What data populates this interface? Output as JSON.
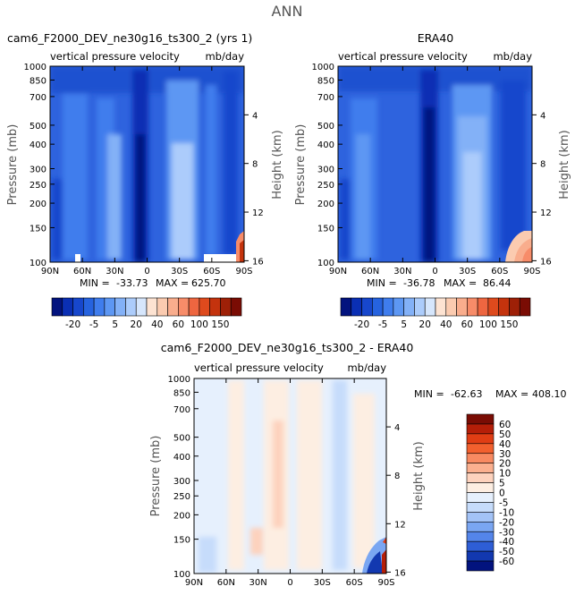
{
  "page_title": "ANN",
  "chart_data": [
    {
      "type": "heatmap",
      "title": "cam6_F2000_DEV_ne30g16_ts300_2 (yrs 1)",
      "subtitle_left": "vertical pressure velocity",
      "subtitle_right": "mb/day",
      "ylabel": "Pressure (mb)",
      "y2label": "Height (km)",
      "x_ticks": [
        "90N",
        "60N",
        "30N",
        "0",
        "30S",
        "60S",
        "90S"
      ],
      "y_ticks": [
        "100",
        "150",
        "200",
        "250",
        "300",
        "400",
        "500",
        "700",
        "850",
        "1000"
      ],
      "y_tick_values": [
        100,
        150,
        200,
        250,
        300,
        400,
        500,
        700,
        850,
        1000
      ],
      "y2_ticks": [
        "16",
        "12",
        "8",
        "4"
      ],
      "y2_tick_values": [
        16,
        12,
        8,
        4
      ],
      "ylim": [
        1000,
        100
      ],
      "y_scale": "log",
      "stats": {
        "min_label": "MIN =",
        "min": "-33.73",
        "max_label": "MAX =",
        "max": "625.70"
      }
    },
    {
      "type": "heatmap",
      "title": "ERA40",
      "subtitle_left": "vertical pressure velocity",
      "subtitle_right": "mb/day",
      "ylabel": "Pressure (mb)",
      "y2label": "Height (km)",
      "x_ticks": [
        "90N",
        "60N",
        "30N",
        "0",
        "30S",
        "60S",
        "90S"
      ],
      "y_ticks": [
        "100",
        "150",
        "200",
        "250",
        "300",
        "400",
        "500",
        "700",
        "850",
        "1000"
      ],
      "y_tick_values": [
        100,
        150,
        200,
        250,
        300,
        400,
        500,
        700,
        850,
        1000
      ],
      "y2_ticks": [
        "16",
        "12",
        "8",
        "4"
      ],
      "y2_tick_values": [
        16,
        12,
        8,
        4
      ],
      "ylim": [
        1000,
        100
      ],
      "y_scale": "log",
      "stats": {
        "min_label": "MIN =",
        "min": "-36.78",
        "max_label": "MAX =",
        "max": "86.44"
      }
    },
    {
      "type": "heatmap",
      "title": "cam6_F2000_DEV_ne30g16_ts300_2 - ERA40",
      "subtitle_left": "vertical pressure velocity",
      "subtitle_right": "mb/day",
      "ylabel": "Pressure (mb)",
      "y2label": "Height (km)",
      "x_ticks": [
        "90N",
        "60N",
        "30N",
        "0",
        "30S",
        "60S",
        "90S"
      ],
      "y_ticks": [
        "100",
        "150",
        "200",
        "250",
        "300",
        "400",
        "500",
        "700",
        "850",
        "1000"
      ],
      "y_tick_values": [
        100,
        150,
        200,
        250,
        300,
        400,
        500,
        700,
        850,
        1000
      ],
      "y2_ticks": [
        "16",
        "12",
        "8",
        "4"
      ],
      "y2_tick_values": [
        16,
        12,
        8,
        4
      ],
      "ylim": [
        1000,
        100
      ],
      "y_scale": "log",
      "stats": {
        "min_label": "MIN =",
        "min": "-62.63",
        "max_label": "MAX =",
        "max": "408.10"
      }
    }
  ],
  "colorbars": {
    "fields": {
      "levels": [
        "-20",
        "-5",
        "5",
        "20",
        "40",
        "60",
        "100",
        "150"
      ],
      "colors": [
        "#02137e",
        "#0a2fb4",
        "#1747cc",
        "#2663df",
        "#3f7ded",
        "#5d97f3",
        "#83b1f7",
        "#acccfb",
        "#d6e6fc",
        "#fde3d2",
        "#fbcbb0",
        "#f9ad8d",
        "#f78c69",
        "#ee6640",
        "#de4a1d",
        "#c4330d",
        "#9e2007",
        "#7a0c04"
      ]
    },
    "diff": {
      "levels": [
        "60",
        "50",
        "40",
        "30",
        "20",
        "10",
        "5",
        "0",
        "-5",
        "-10",
        "-20",
        "-30",
        "-40",
        "-50",
        "-60"
      ],
      "colors": [
        "#7a0c04",
        "#b51e08",
        "#e03d14",
        "#f2602e",
        "#f88a61",
        "#fbb08f",
        "#fdd2bd",
        "#fdeee2",
        "#e6f0fd",
        "#c6dcfb",
        "#a3c3f7",
        "#7aa6f2",
        "#5485ea",
        "#2e5ed6",
        "#1238b0",
        "#02137e"
      ]
    }
  }
}
